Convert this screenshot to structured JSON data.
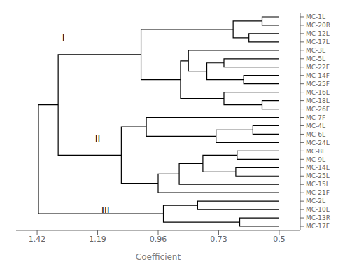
{
  "chart_data": {
    "type": "dendrogram",
    "xlabel": "Coefficient",
    "categories": [
      "MC-1L",
      "MC-20R",
      "MC-12L",
      "MC-17L",
      "MC-3L",
      "MC-5L",
      "MC-22F",
      "MC-14F",
      "MC-25F",
      "MC-16L",
      "MC-18L",
      "MC-26F",
      "MC-7F",
      "MC-4L",
      "MC-6L",
      "MC-24L",
      "MC-8L",
      "MC-9L",
      "MC-14L",
      "MC-25L",
      "MC-15L",
      "MC-21F",
      "MC-2L",
      "MC-10L",
      "MC-13R",
      "MC-17F"
    ],
    "xlim": [
      1.5,
      0.42
    ],
    "xticks": [
      1.42,
      1.19,
      0.96,
      0.73,
      0.5
    ],
    "leaf_x": 0.5,
    "color": "#000000",
    "nodes": [
      {
        "x": 0.565,
        "children": [
          {
            "leaf": 0
          },
          {
            "leaf": 1
          }
        ]
      },
      {
        "x": 0.615,
        "children": [
          {
            "leaf": 2
          },
          {
            "leaf": 3
          }
        ]
      },
      {
        "x": 0.675,
        "children": [
          {
            "node": 0
          },
          {
            "node": 1
          }
        ]
      },
      {
        "x": 0.71,
        "children": [
          {
            "leaf": 5
          },
          {
            "leaf": 6
          }
        ]
      },
      {
        "x": 0.635,
        "children": [
          {
            "leaf": 7
          },
          {
            "leaf": 8
          }
        ]
      },
      {
        "x": 0.775,
        "children": [
          {
            "node": 3
          },
          {
            "node": 4
          }
        ]
      },
      {
        "x": 0.845,
        "children": [
          {
            "leaf": 4
          },
          {
            "node": 5
          }
        ]
      },
      {
        "x": 0.565,
        "children": [
          {
            "leaf": 10
          },
          {
            "leaf": 11
          }
        ]
      },
      {
        "x": 0.71,
        "children": [
          {
            "leaf": 9
          },
          {
            "node": 7
          }
        ]
      },
      {
        "x": 0.875,
        "children": [
          {
            "node": 6
          },
          {
            "node": 8
          }
        ]
      },
      {
        "x": 1.025,
        "children": [
          {
            "node": 2
          },
          {
            "node": 9
          }
        ]
      },
      {
        "x": 0.6,
        "children": [
          {
            "leaf": 13
          },
          {
            "leaf": 14
          }
        ]
      },
      {
        "x": 0.74,
        "children": [
          {
            "node": 11
          },
          {
            "leaf": 15
          }
        ]
      },
      {
        "x": 0.66,
        "children": [
          {
            "leaf": 16
          },
          {
            "leaf": 17
          }
        ]
      },
      {
        "x": 0.665,
        "children": [
          {
            "leaf": 18
          },
          {
            "leaf": 19
          }
        ]
      },
      {
        "x": 0.79,
        "children": [
          {
            "node": 13
          },
          {
            "node": 14
          }
        ]
      },
      {
        "x": 0.88,
        "children": [
          {
            "node": 15
          },
          {
            "leaf": 20
          }
        ]
      },
      {
        "x": 0.96,
        "children": [
          {
            "node": 16
          },
          {
            "leaf": 21
          }
        ]
      },
      {
        "x": 1.005,
        "children": [
          {
            "leaf": 12
          },
          {
            "node": 12
          }
        ]
      },
      {
        "x": 1.1,
        "children": [
          {
            "node": 18
          },
          {
            "node": 17
          }
        ]
      },
      {
        "x": 1.34,
        "children": [
          {
            "node": 10
          },
          {
            "node": 19
          }
        ]
      },
      {
        "x": 0.81,
        "children": [
          {
            "leaf": 22
          },
          {
            "leaf": 23
          }
        ]
      },
      {
        "x": 0.65,
        "children": [
          {
            "leaf": 24
          },
          {
            "leaf": 25
          }
        ]
      },
      {
        "x": 0.94,
        "children": [
          {
            "node": 21
          },
          {
            "node": 22
          }
        ]
      },
      {
        "x": 1.415,
        "children": [
          {
            "node": 20
          },
          {
            "node": 23
          }
        ]
      }
    ],
    "annotations": [
      {
        "text": "I",
        "x": 1.32,
        "y": 2.5
      },
      {
        "text": "II",
        "x": 1.19,
        "y": 14.5
      },
      {
        "text": "III",
        "x": 1.16,
        "y": 23.0
      }
    ]
  }
}
